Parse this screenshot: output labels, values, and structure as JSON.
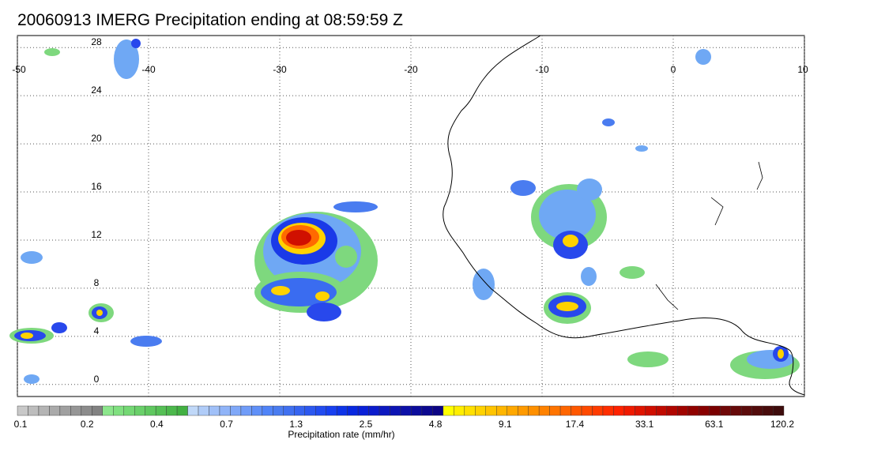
{
  "title": "20060913 IMERG Precipitation ending at 08:59:59 Z",
  "map": {
    "lon_labels": [
      "-50",
      "-40",
      "-30",
      "-20",
      "-10",
      "0",
      "10"
    ],
    "lat_labels": [
      "28",
      "24",
      "20",
      "16",
      "12",
      "8",
      "4",
      "0"
    ],
    "lon_range": [
      -50,
      10
    ],
    "lat_range": [
      -1,
      29
    ],
    "grid": "dotted"
  },
  "colorbar": {
    "label": "Precipitation rate (mm/hr)",
    "tick_labels": [
      "0.1",
      "0.2",
      "0.4",
      "0.7",
      "1.3",
      "2.5",
      "4.8",
      "9.1",
      "17.4",
      "33.1",
      "63.1",
      "120.2"
    ],
    "colors": [
      "#c8c8c8",
      "#bdbdbd",
      "#b4b4b4",
      "#aaaaaa",
      "#a0a0a0",
      "#969696",
      "#8c8c8c",
      "#828282",
      "#8ce68c",
      "#80e080",
      "#74d874",
      "#6ad06a",
      "#60c860",
      "#56c056",
      "#4cb84c",
      "#42b042",
      "#c0d8f8",
      "#b0ccf8",
      "#a0c0f8",
      "#90b4f8",
      "#80a8f8",
      "#709cf8",
      "#6090f8",
      "#5084f8",
      "#4a7cf0",
      "#4070f0",
      "#3664f0",
      "#2c58f0",
      "#224cf0",
      "#1840f0",
      "#0e34e8",
      "#0828e0",
      "#0a20d8",
      "#0c1ccc",
      "#0c18c0",
      "#0c14b4",
      "#0c10a8",
      "#0c0c9c",
      "#0c0890",
      "#0c0484",
      "#ffff00",
      "#ffee00",
      "#ffe000",
      "#ffd200",
      "#ffc400",
      "#ffb600",
      "#ffa800",
      "#ff9a00",
      "#ff9000",
      "#ff8200",
      "#ff7400",
      "#ff6600",
      "#ff5800",
      "#ff4a00",
      "#ff3c00",
      "#ff2e00",
      "#ff2200",
      "#f01a00",
      "#e01400",
      "#d00e00",
      "#c00a00",
      "#b00600",
      "#a00400",
      "#900200",
      "#880000",
      "#7a0000",
      "#700808",
      "#660a0a",
      "#5c0c0c",
      "#520c0c",
      "#480c0c",
      "#3e0c0c"
    ]
  }
}
